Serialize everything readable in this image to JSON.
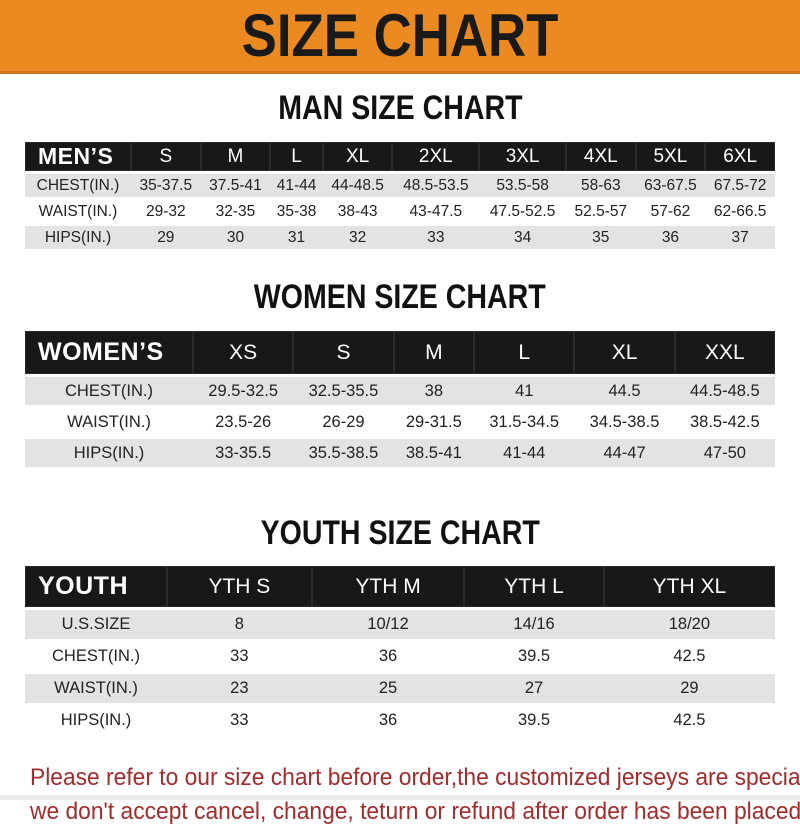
{
  "banner": {
    "title": "SIZE CHART"
  },
  "chart_data": [
    {
      "type": "table",
      "title": "MAN SIZE CHART",
      "header_label": "MEN’S",
      "columns": [
        "S",
        "M",
        "L",
        "XL",
        "2XL",
        "3XL",
        "4XL",
        "5XL",
        "6XL"
      ],
      "rows": [
        {
          "label": "CHEST(IN.)",
          "values": [
            "35-37.5",
            "37.5-41",
            "41-44",
            "44-48.5",
            "48.5-53.5",
            "53.5-58",
            "58-63",
            "63-67.5",
            "67.5-72"
          ]
        },
        {
          "label": "WAIST(IN.)",
          "values": [
            "29-32",
            "32-35",
            "35-38",
            "38-43",
            "43-47.5",
            "47.5-52.5",
            "52.5-57",
            "57-62",
            "62-66.5"
          ]
        },
        {
          "label": "HIPS(IN.)",
          "values": [
            "29",
            "30",
            "31",
            "32",
            "33",
            "34",
            "35",
            "36",
            "37"
          ]
        }
      ]
    },
    {
      "type": "table",
      "title": "WOMEN SIZE CHART",
      "header_label": "WOMEN’S",
      "columns": [
        "XS",
        "S",
        "M",
        "L",
        "XL",
        "XXL"
      ],
      "rows": [
        {
          "label": "CHEST(IN.)",
          "values": [
            "29.5-32.5",
            "32.5-35.5",
            "38",
            "41",
            "44.5",
            "44.5-48.5"
          ]
        },
        {
          "label": "WAIST(IN.)",
          "values": [
            "23.5-26",
            "26-29",
            "29-31.5",
            "31.5-34.5",
            "34.5-38.5",
            "38.5-42.5"
          ]
        },
        {
          "label": "HIPS(IN.)",
          "values": [
            "33-35.5",
            "35.5-38.5",
            "38.5-41",
            "41-44",
            "44-47",
            "47-50"
          ]
        }
      ]
    },
    {
      "type": "table",
      "title": "YOUTH SIZE CHART",
      "header_label": "YOUTH",
      "columns": [
        "YTH S",
        "YTH M",
        "YTH L",
        "YTH XL"
      ],
      "rows": [
        {
          "label": "U.S.SIZE",
          "values": [
            "8",
            "10/12",
            "14/16",
            "18/20"
          ]
        },
        {
          "label": "CHEST(IN.)",
          "values": [
            "33",
            "36",
            "39.5",
            "42.5"
          ]
        },
        {
          "label": "WAIST(IN.)",
          "values": [
            "23",
            "25",
            "27",
            "29"
          ]
        },
        {
          "label": "HIPS(IN.)",
          "values": [
            "33",
            "36",
            "39.5",
            "42.5"
          ]
        }
      ]
    }
  ],
  "notice": {
    "line1": "Please refer to our size chart before order,the customized jerseys are special products,",
    "line2": "we don't accept cancel, change, teturn or refund after order has been placed!"
  },
  "colors": {
    "banner_bg": "#EC8A22",
    "banner_text": "#1A1A1A",
    "table_header_bg": "#181818",
    "table_header_text": "#FFFFFF",
    "row_alt_bg": "#E3E3E3",
    "row_text": "#222222",
    "notice_text": "#A22C2C"
  }
}
